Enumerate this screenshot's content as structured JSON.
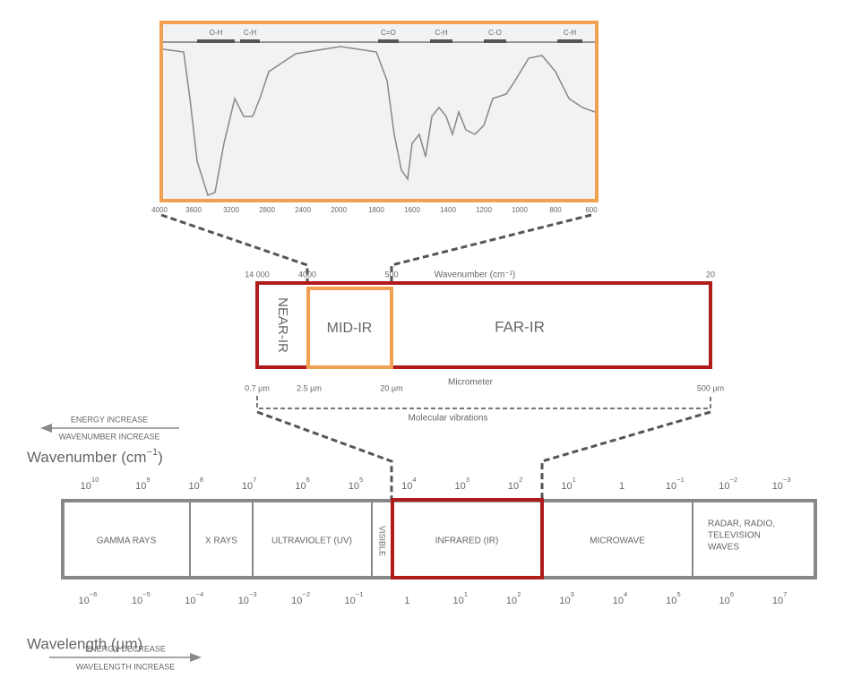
{
  "spectrum": {
    "bands": [
      "O-H",
      "C-H",
      "C=O",
      "C-H",
      "C-O",
      "C-H"
    ],
    "axis_labels": [
      "4000",
      "3600",
      "3200",
      "2800",
      "2400",
      "2000",
      "1800",
      "1600",
      "1400",
      "1200",
      "1000",
      "800",
      "600"
    ]
  },
  "ir_regions": {
    "top_labels": [
      "14 000",
      "4000",
      "500",
      "20"
    ],
    "wavenumber_label": "Wavenumber (cm⁻¹)",
    "regions": [
      "NEAR-IR",
      "MID-IR",
      "FAR-IR"
    ],
    "bottom_labels": [
      "0.7 µm",
      "2.5 µm",
      "20 µm",
      "500 µm"
    ],
    "micrometer_label": "Micrometer",
    "vibrations_label": "Molecular vibrations"
  },
  "em_spectrum": {
    "energy_increase": "ENERGY INCREASE",
    "wavenumber_increase": "WAVENUMBER INCREASE",
    "wavenumber_title": {
      "text": "Wavenumber (cm",
      "exp": "−1",
      "close": ")"
    },
    "wavenumber_ticks": [
      {
        "base": "10",
        "exp": "10"
      },
      {
        "base": "10",
        "exp": "9"
      },
      {
        "base": "10",
        "exp": "8"
      },
      {
        "base": "10",
        "exp": "7"
      },
      {
        "base": "10",
        "exp": "6"
      },
      {
        "base": "10",
        "exp": "5"
      },
      {
        "base": "10",
        "exp": "4"
      },
      {
        "base": "10",
        "exp": "3"
      },
      {
        "base": "10",
        "exp": "2"
      },
      {
        "base": "10",
        "exp": "1"
      },
      {
        "base": "1"
      },
      {
        "base": "10",
        "exp": "−1"
      },
      {
        "base": "10",
        "exp": "−2"
      },
      {
        "base": "10",
        "exp": "−3"
      }
    ],
    "regions": [
      [
        "GAMMA RAYS"
      ],
      [
        "X RAYS"
      ],
      [
        "ULTRAVIOLET (UV)"
      ],
      [
        "VISIBLE"
      ],
      [
        "INFRARED (IR)"
      ],
      [
        "MICROWAVE"
      ],
      [
        "RADAR, RADIO,",
        "TELEVISION",
        "WAVES"
      ]
    ],
    "wavelength_ticks": [
      {
        "base": "10",
        "exp": "−6"
      },
      {
        "base": "10",
        "exp": "−5"
      },
      {
        "base": "10",
        "exp": "−4"
      },
      {
        "base": "10",
        "exp": "−3"
      },
      {
        "base": "10",
        "exp": "−2"
      },
      {
        "base": "10",
        "exp": "−1"
      },
      {
        "base": "1"
      },
      {
        "base": "10",
        "exp": "1"
      },
      {
        "base": "10",
        "exp": "2"
      },
      {
        "base": "10",
        "exp": "3"
      },
      {
        "base": "10",
        "exp": "4"
      },
      {
        "base": "10",
        "exp": "5"
      },
      {
        "base": "10",
        "exp": "6"
      },
      {
        "base": "10",
        "exp": "7"
      }
    ],
    "wavelength_title": "Wavelength (µm)",
    "energy_decrease": "ENERGY DECREASE",
    "wavelength_increase": "WAVELENGTH INCREASE"
  }
}
